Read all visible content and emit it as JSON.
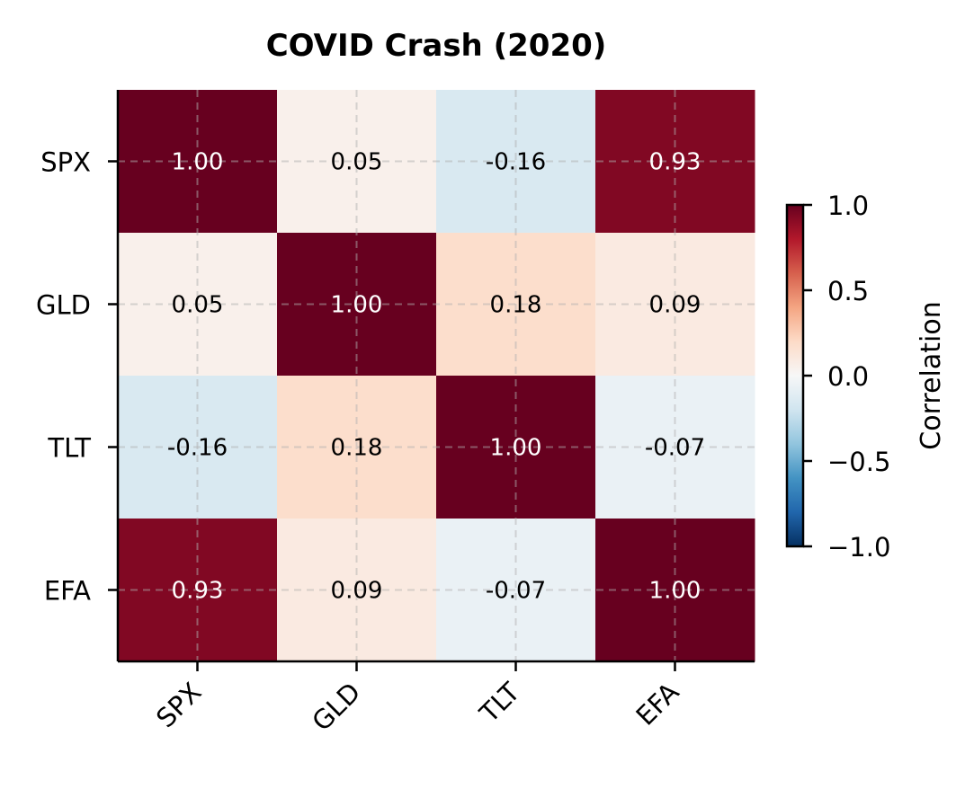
{
  "chart_data": {
    "type": "heatmap",
    "title": "COVID Crash (2020)",
    "x_labels": [
      "SPX",
      "GLD",
      "TLT",
      "EFA"
    ],
    "y_labels": [
      "SPX",
      "GLD",
      "TLT",
      "EFA"
    ],
    "values": [
      [
        1.0,
        0.05,
        -0.16,
        0.93
      ],
      [
        0.05,
        1.0,
        0.18,
        0.09
      ],
      [
        -0.16,
        0.18,
        1.0,
        -0.07
      ],
      [
        0.93,
        0.09,
        -0.07,
        1.0
      ]
    ],
    "value_labels": [
      [
        "1.00",
        "0.05",
        "-0.16",
        "0.93"
      ],
      [
        "0.05",
        "1.00",
        "0.18",
        "0.09"
      ],
      [
        "-0.16",
        "0.18",
        "1.00",
        "-0.07"
      ],
      [
        "0.93",
        "0.09",
        "-0.07",
        "1.00"
      ]
    ],
    "colormap": "RdBu_r",
    "vmin": -1.0,
    "vmax": 1.0,
    "grid": true,
    "colorbar": {
      "label": "Correlation",
      "ticks": [
        "1.0",
        "0.5",
        "0.0",
        "−0.5",
        "−1.0"
      ],
      "tick_values": [
        1.0,
        0.5,
        0.0,
        -0.5,
        -1.0
      ],
      "placement": "right"
    }
  }
}
